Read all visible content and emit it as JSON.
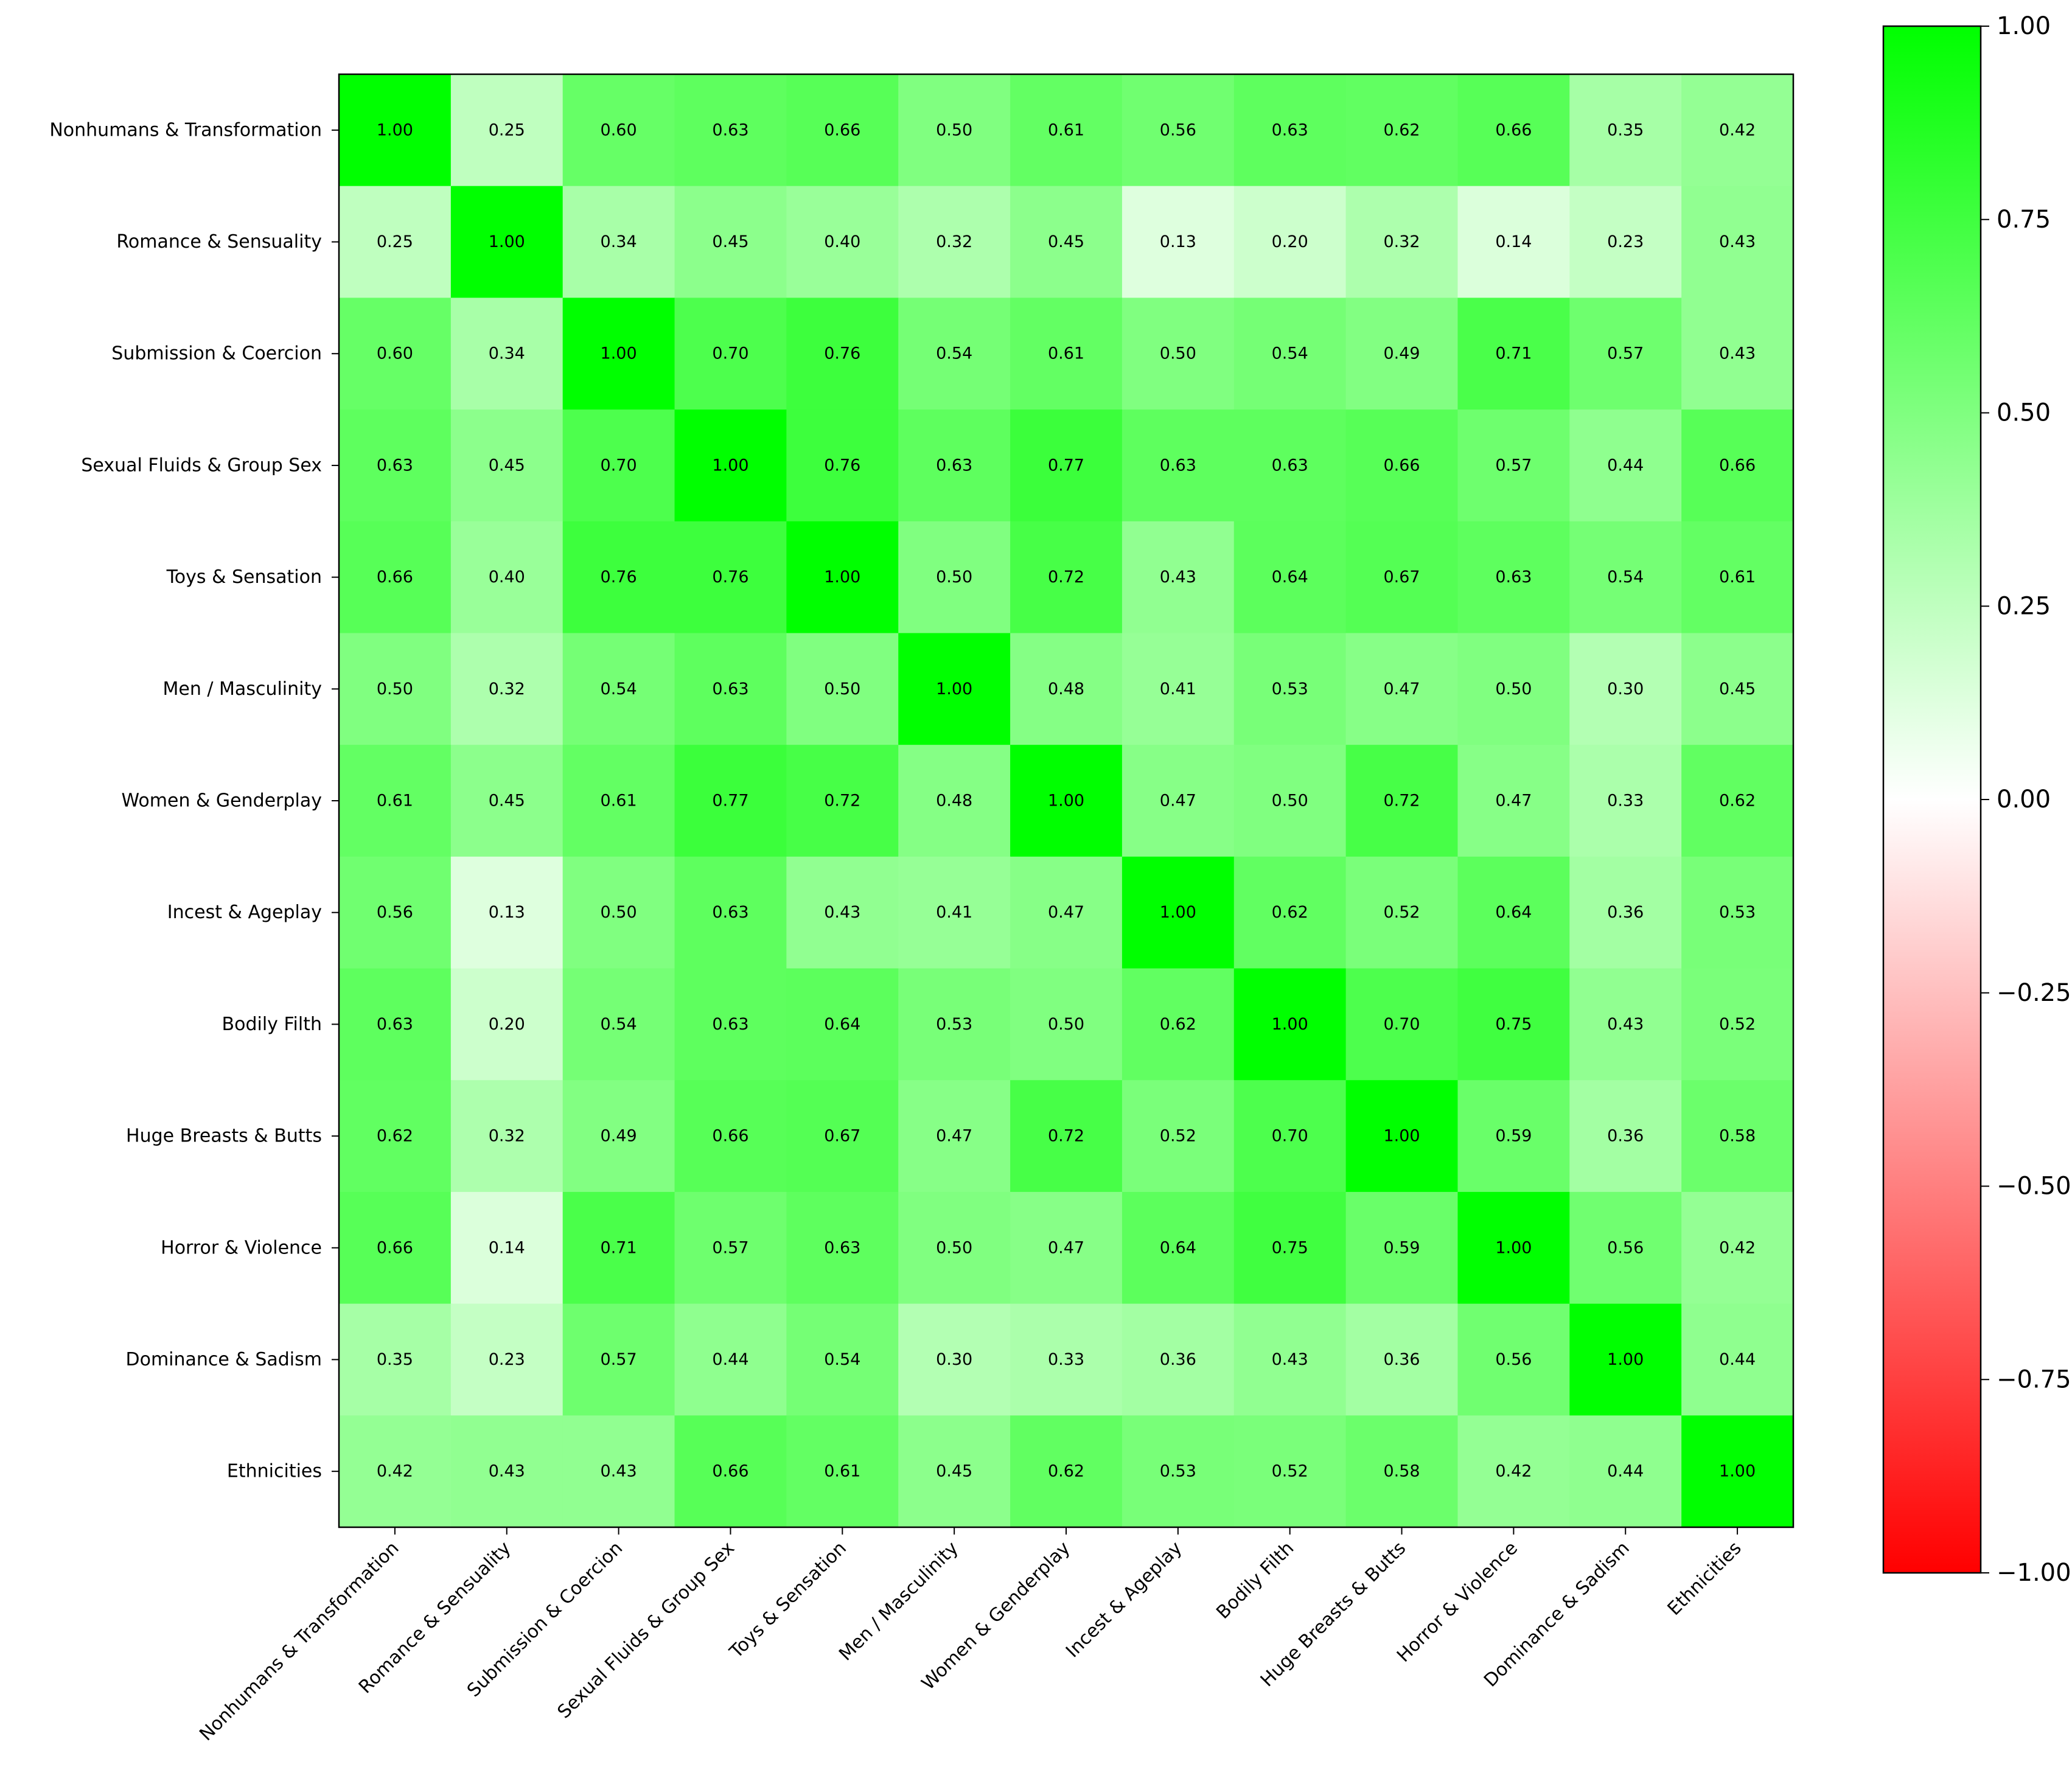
{
  "chart_data": {
    "type": "heatmap",
    "title": "",
    "xlabel": "",
    "ylabel": "",
    "labels": [
      "Nonhumans & Transformation",
      "Romance & Sensuality",
      "Submission & Coercion",
      "Sexual Fluids & Group Sex",
      "Toys & Sensation",
      "Men / Masculinity",
      "Women & Genderplay",
      "Incest & Ageplay",
      "Bodily Filth",
      "Huge Breasts & Butts",
      "Horror & Violence",
      "Dominance & Sadism",
      "Ethnicities"
    ],
    "matrix": [
      [
        1.0,
        0.25,
        0.6,
        0.63,
        0.66,
        0.5,
        0.61,
        0.56,
        0.63,
        0.62,
        0.66,
        0.35,
        0.42
      ],
      [
        0.25,
        1.0,
        0.34,
        0.45,
        0.4,
        0.32,
        0.45,
        0.13,
        0.2,
        0.32,
        0.14,
        0.23,
        0.43
      ],
      [
        0.6,
        0.34,
        1.0,
        0.7,
        0.76,
        0.54,
        0.61,
        0.5,
        0.54,
        0.49,
        0.71,
        0.57,
        0.43
      ],
      [
        0.63,
        0.45,
        0.7,
        1.0,
        0.76,
        0.63,
        0.77,
        0.63,
        0.63,
        0.66,
        0.57,
        0.44,
        0.66
      ],
      [
        0.66,
        0.4,
        0.76,
        0.76,
        1.0,
        0.5,
        0.72,
        0.43,
        0.64,
        0.67,
        0.63,
        0.54,
        0.61
      ],
      [
        0.5,
        0.32,
        0.54,
        0.63,
        0.5,
        1.0,
        0.48,
        0.41,
        0.53,
        0.47,
        0.5,
        0.3,
        0.45
      ],
      [
        0.61,
        0.45,
        0.61,
        0.77,
        0.72,
        0.48,
        1.0,
        0.47,
        0.5,
        0.72,
        0.47,
        0.33,
        0.62
      ],
      [
        0.56,
        0.13,
        0.5,
        0.63,
        0.43,
        0.41,
        0.47,
        1.0,
        0.62,
        0.52,
        0.64,
        0.36,
        0.53
      ],
      [
        0.63,
        0.2,
        0.54,
        0.63,
        0.64,
        0.53,
        0.5,
        0.62,
        1.0,
        0.7,
        0.75,
        0.43,
        0.52
      ],
      [
        0.62,
        0.32,
        0.49,
        0.66,
        0.67,
        0.47,
        0.72,
        0.52,
        0.7,
        1.0,
        0.59,
        0.36,
        0.58
      ],
      [
        0.66,
        0.14,
        0.71,
        0.57,
        0.63,
        0.5,
        0.47,
        0.64,
        0.75,
        0.59,
        1.0,
        0.56,
        0.42
      ],
      [
        0.35,
        0.23,
        0.57,
        0.44,
        0.54,
        0.3,
        0.33,
        0.36,
        0.43,
        0.36,
        0.56,
        1.0,
        0.44
      ],
      [
        0.42,
        0.43,
        0.43,
        0.66,
        0.61,
        0.45,
        0.62,
        0.53,
        0.52,
        0.58,
        0.42,
        0.44,
        1.0
      ]
    ],
    "value_format": "0.00",
    "vmin": -1.0,
    "vmax": 1.0,
    "colormap": {
      "low": "#ff0000",
      "mid": "#ffffff",
      "high": "#00ff00"
    },
    "colorbar": {
      "position": "right",
      "ticks": [
        1.0,
        0.75,
        0.5,
        0.25,
        0.0,
        -0.25,
        -0.5,
        -0.75,
        -1.0
      ],
      "tick_labels": [
        "1.00",
        "0.75",
        "0.50",
        "0.25",
        "0.00",
        "−0.25",
        "−0.50",
        "−0.75",
        "−1.00"
      ]
    },
    "x_tick_rotation_deg": 45,
    "grid": false
  }
}
